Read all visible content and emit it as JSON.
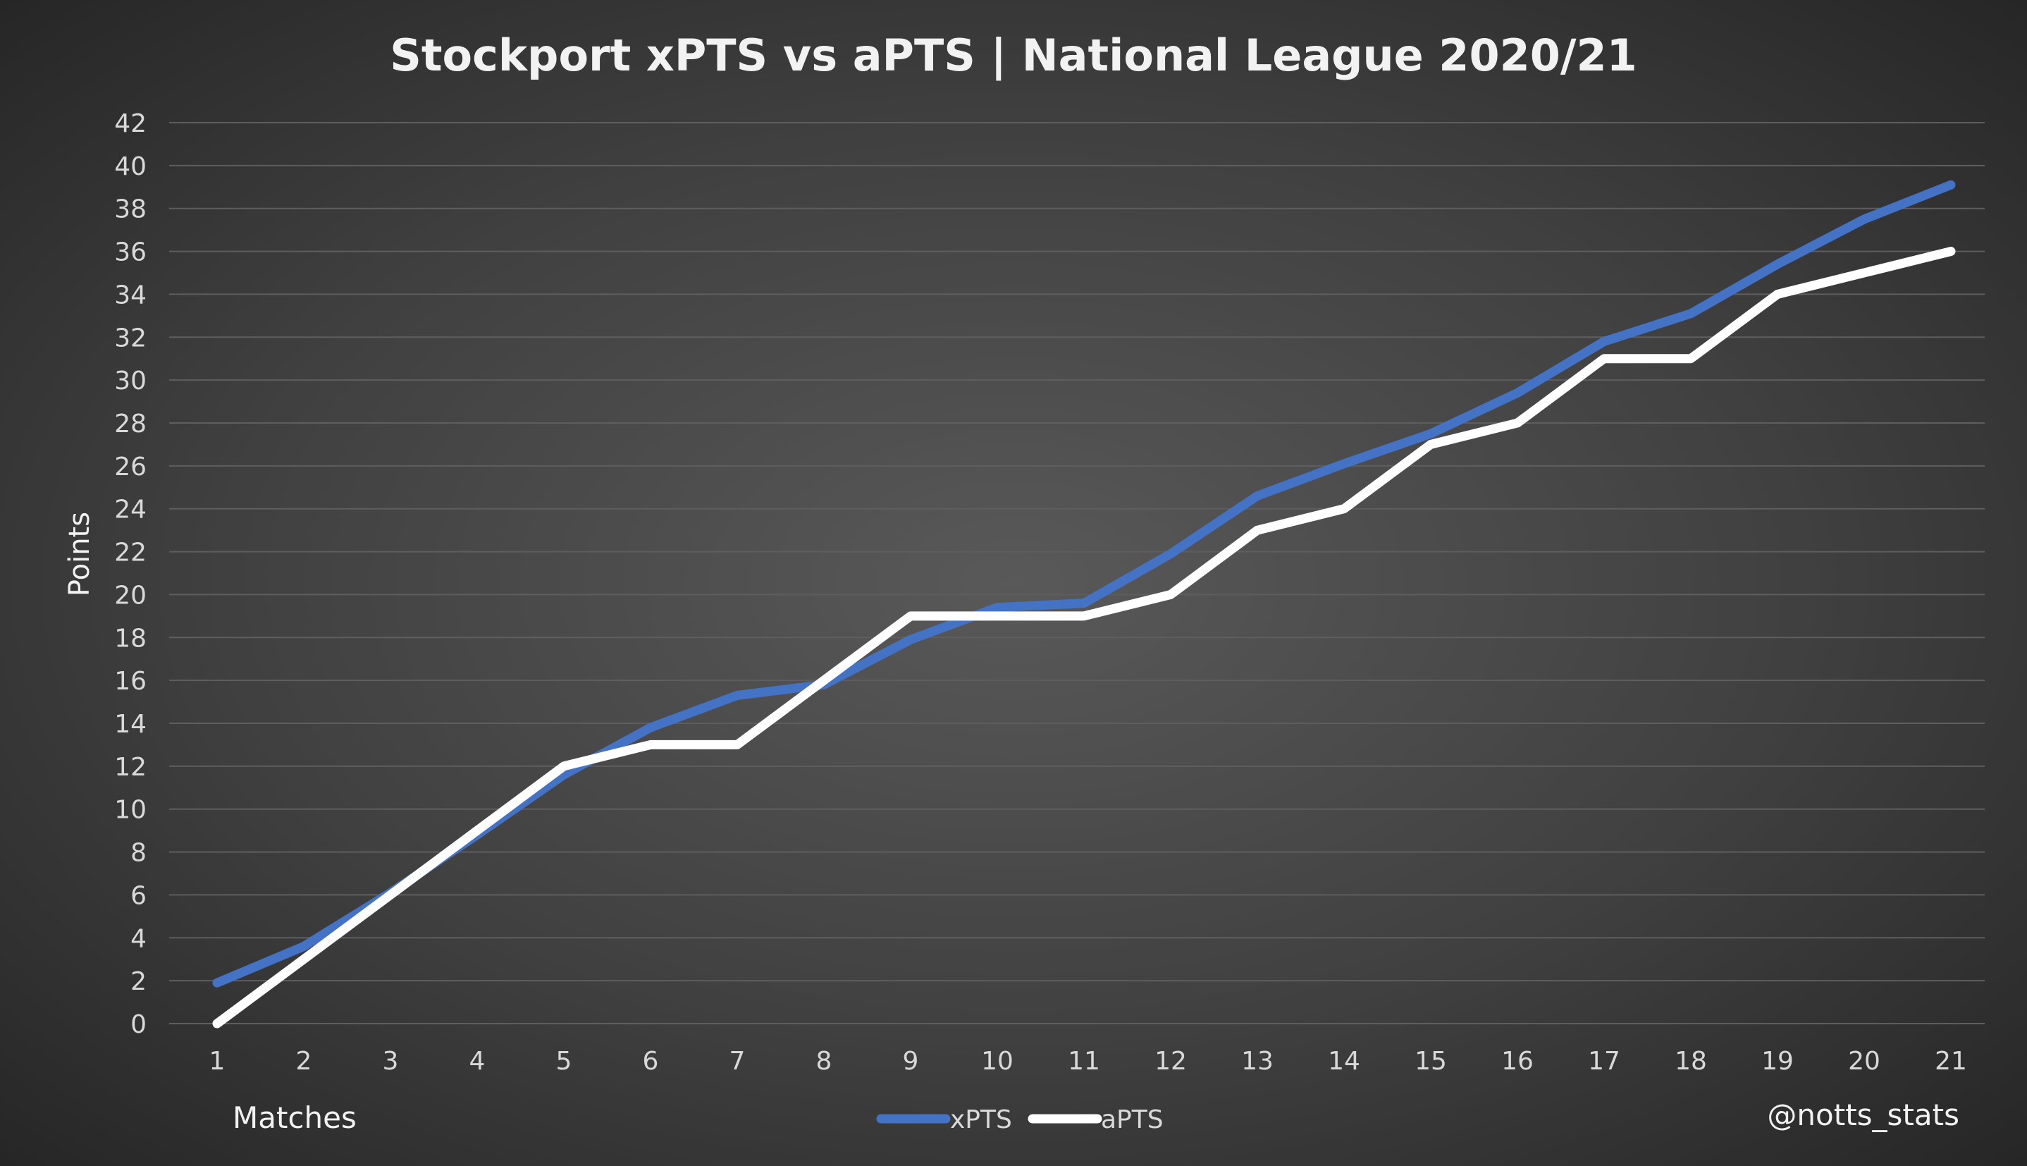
{
  "chart_data": {
    "type": "line",
    "title": "Stockport xPTS vs aPTS | National League 2020/21",
    "xlabel": "Matches",
    "ylabel": "Points",
    "watermark": "@notts_stats",
    "x": [
      1,
      2,
      3,
      4,
      5,
      6,
      7,
      8,
      9,
      10,
      11,
      12,
      13,
      14,
      15,
      16,
      17,
      18,
      19,
      20,
      21
    ],
    "ylim": [
      0,
      42
    ],
    "yticks": [
      0,
      2,
      4,
      6,
      8,
      10,
      12,
      14,
      16,
      18,
      20,
      22,
      24,
      26,
      28,
      30,
      32,
      34,
      36,
      38,
      40,
      42
    ],
    "grid": true,
    "legend_position": "bottom-center",
    "series": [
      {
        "name": "xPTS",
        "color": "#4472c4",
        "values": [
          1.9,
          3.6,
          6.1,
          8.8,
          11.6,
          13.8,
          15.3,
          15.8,
          17.9,
          19.4,
          19.6,
          21.9,
          24.6,
          26.1,
          27.5,
          29.4,
          31.8,
          33.1,
          35.4,
          37.5,
          39.1
        ]
      },
      {
        "name": "aPTS",
        "color": "#ffffff",
        "values": [
          0,
          3,
          6,
          9,
          12,
          13,
          13,
          16,
          19,
          19,
          19,
          20,
          23,
          24,
          27,
          28,
          31,
          31,
          34,
          35,
          36
        ]
      }
    ]
  },
  "colors": {
    "gridline": "#5e5e5e",
    "text": "#d9d9d9"
  }
}
